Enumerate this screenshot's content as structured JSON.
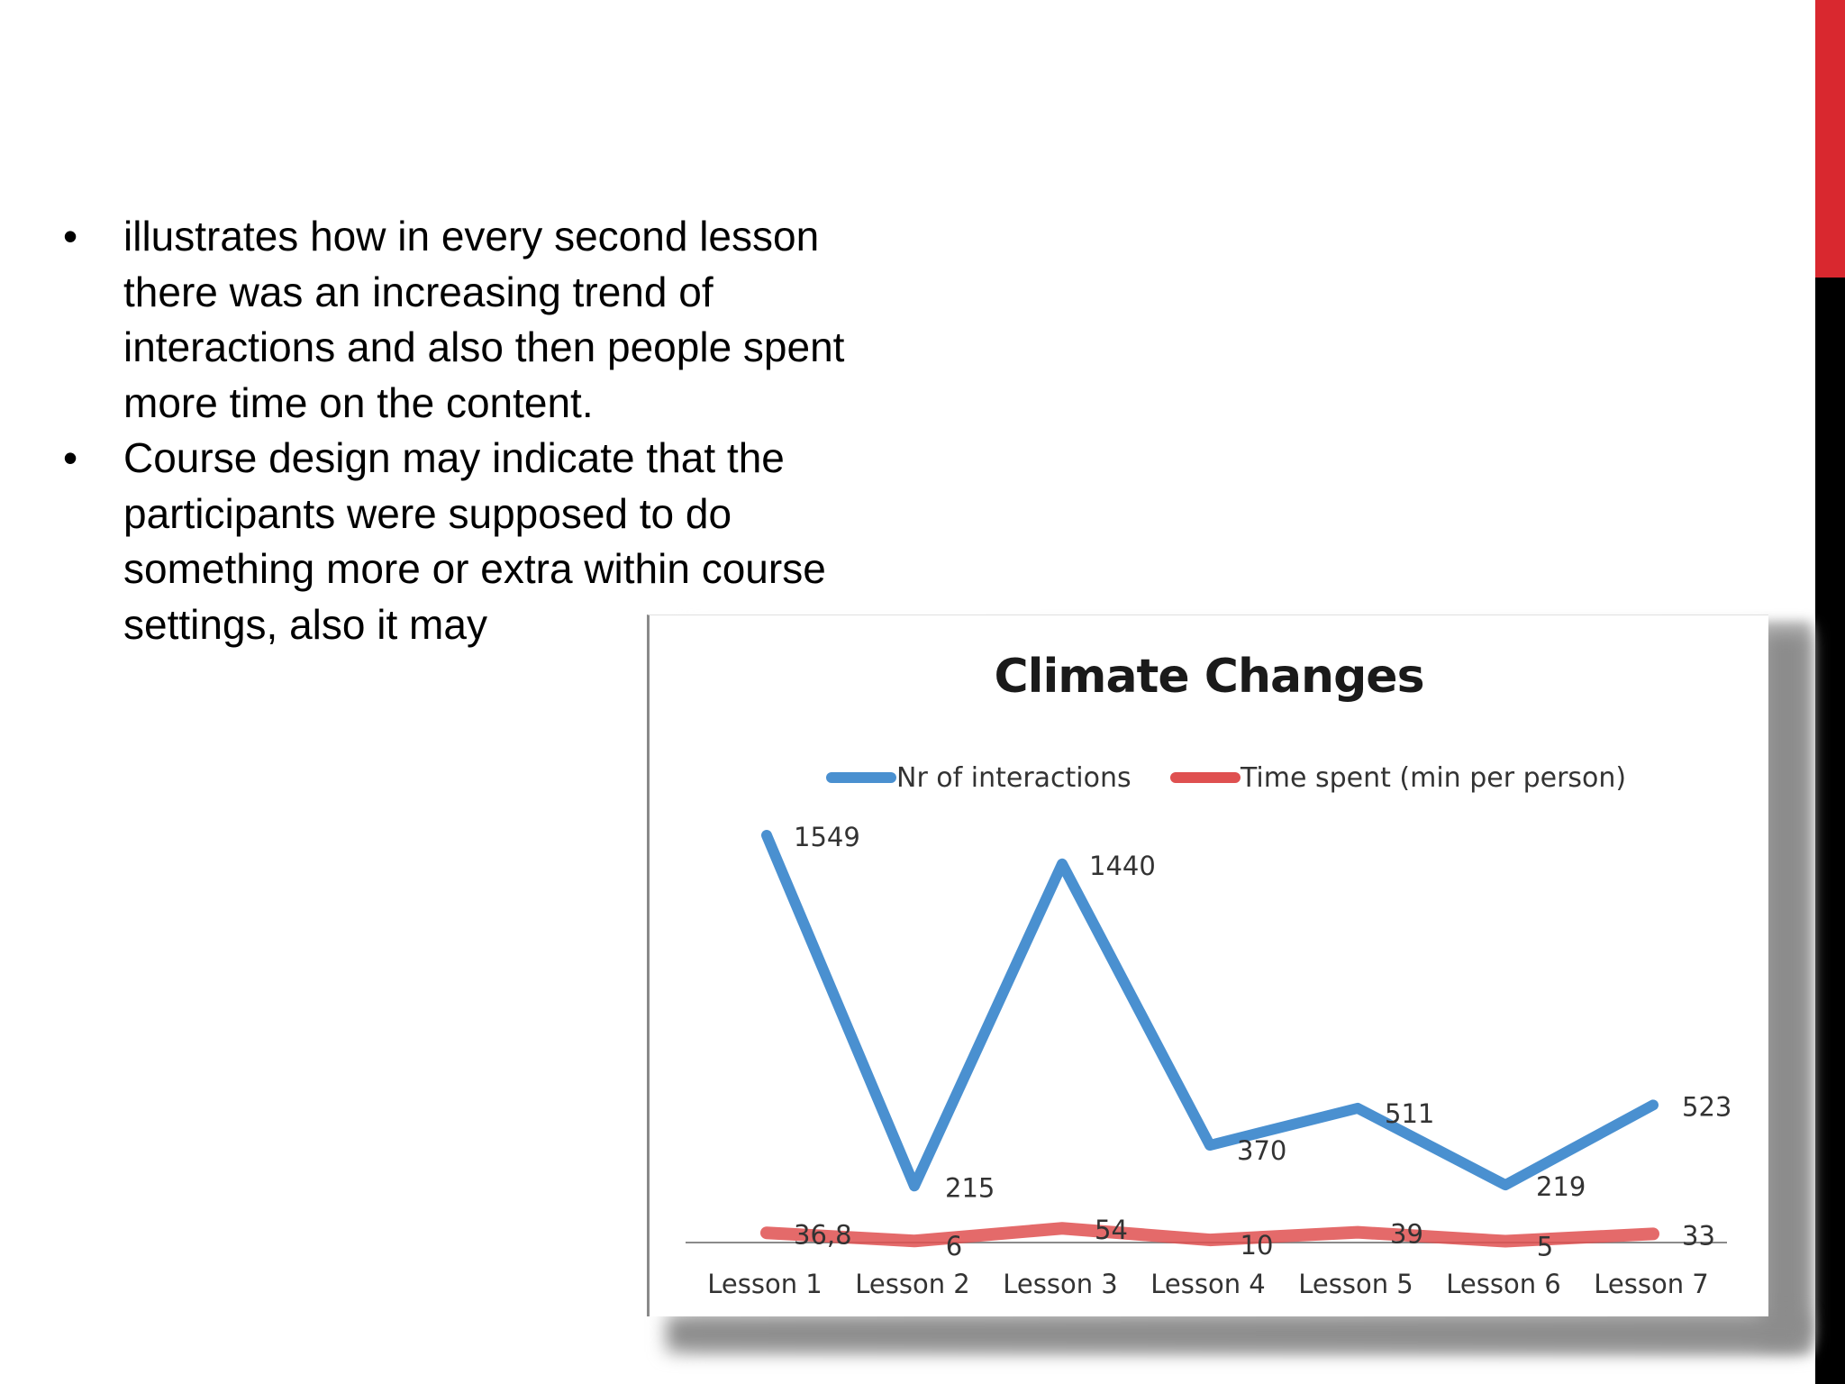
{
  "bullets": [
    "illustrates how in every second lesson there was an increasing trend of interactions and also then people spent more time on the content.",
    "Course design may indicate that the participants were supposed to do something more or extra within course settings, also it may"
  ],
  "bullet_lines": [
    [
      "illustrates how in every second lesson",
      "there was an increasing trend of",
      "interactions and also then people spent",
      "more time on the content."
    ],
    [
      "Course design may indicate that the",
      "participants were supposed to do",
      "something more or extra within course",
      "settings, also it may"
    ]
  ],
  "bullet_symbol": "•",
  "colors": {
    "accent_red": "#d9282f",
    "accent_black": "#000000",
    "series_interactions": "#4a90d0",
    "series_time": "#df5050"
  },
  "chart_data": {
    "type": "line",
    "title": "Climate Changes",
    "legend_position": "top",
    "grid": false,
    "categories": [
      "Lesson 1",
      "Lesson 2",
      "Lesson 3",
      "Lesson 4",
      "Lesson 5",
      "Lesson 6",
      "Lesson 7"
    ],
    "ylim": [
      0,
      1900
    ],
    "series": [
      {
        "name": "Nr of interactions",
        "values": [
          1549,
          215,
          1440,
          370,
          511,
          219,
          523
        ],
        "labels": [
          "1549",
          "215",
          "1440",
          "370",
          "511",
          "219",
          "523"
        ]
      },
      {
        "name": "Time spent (min per person)",
        "values": [
          36.8,
          6,
          54,
          10,
          39,
          5,
          33
        ],
        "labels": [
          "36,8",
          "6",
          "54",
          "10",
          "39",
          "5",
          "33"
        ]
      }
    ]
  }
}
